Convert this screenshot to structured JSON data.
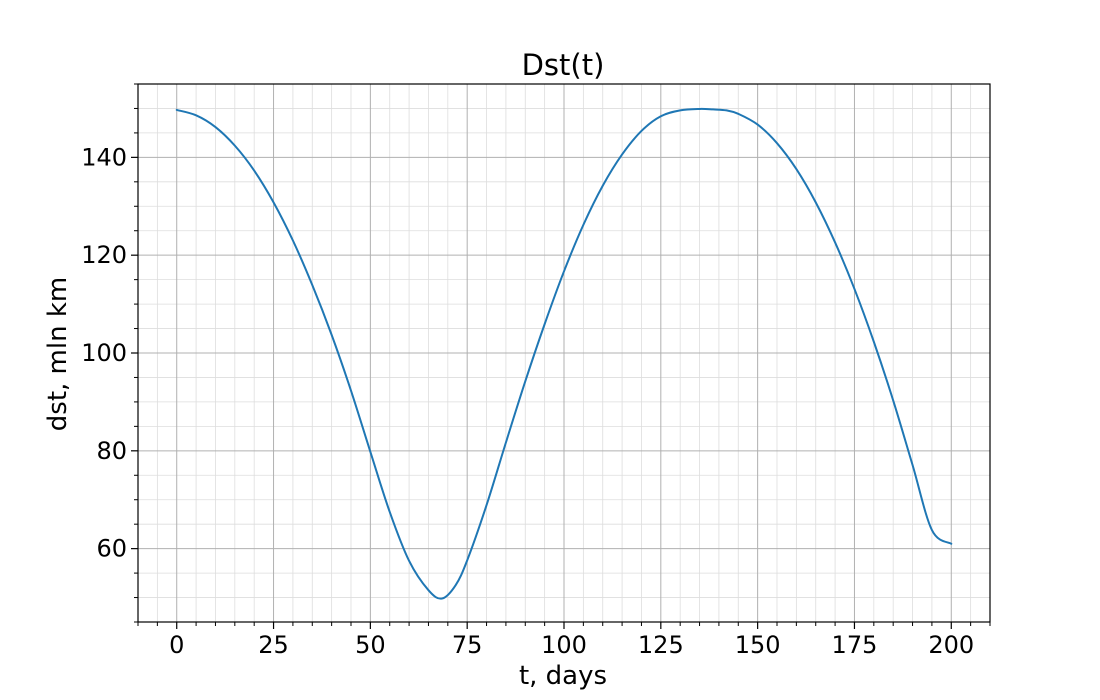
{
  "chart_data": {
    "type": "line",
    "title": "Dst(t)",
    "xlabel": "t, days",
    "ylabel": "dst, mln km",
    "xlim": [
      -10,
      210
    ],
    "ylim": [
      45,
      155
    ],
    "x_ticks": [
      0,
      25,
      50,
      75,
      100,
      125,
      150,
      175,
      200
    ],
    "y_ticks": [
      60,
      80,
      100,
      120,
      140
    ],
    "x_minor_step": 5,
    "y_minor_step": 5,
    "grid": true,
    "minor_grid": true,
    "line_color": "#1f77b4",
    "series": [
      {
        "x": [
          0,
          5,
          10,
          15,
          20,
          25,
          30,
          35,
          40,
          45,
          50,
          55,
          60,
          65,
          68.5,
          72,
          75,
          80,
          85,
          90,
          95,
          100,
          105,
          110,
          115,
          120,
          125,
          130,
          135,
          138.5,
          142,
          145,
          150,
          155,
          160,
          165,
          170,
          175,
          180,
          185,
          190,
          195,
          200
        ],
        "y": [
          149.7,
          148.6,
          146.2,
          142.4,
          137.3,
          130.8,
          123.0,
          113.9,
          103.7,
          92.3,
          79.8,
          67.5,
          57.5,
          51.5,
          49.8,
          52.5,
          57.6,
          68.9,
          81.7,
          94.2,
          105.9,
          116.7,
          126.2,
          134.2,
          140.6,
          145.4,
          148.4,
          149.6,
          149.9,
          149.8,
          149.6,
          148.9,
          146.7,
          142.9,
          137.6,
          130.8,
          122.6,
          113.1,
          102.3,
          90.3,
          77.1,
          63.8,
          61.0
        ]
      }
    ]
  }
}
